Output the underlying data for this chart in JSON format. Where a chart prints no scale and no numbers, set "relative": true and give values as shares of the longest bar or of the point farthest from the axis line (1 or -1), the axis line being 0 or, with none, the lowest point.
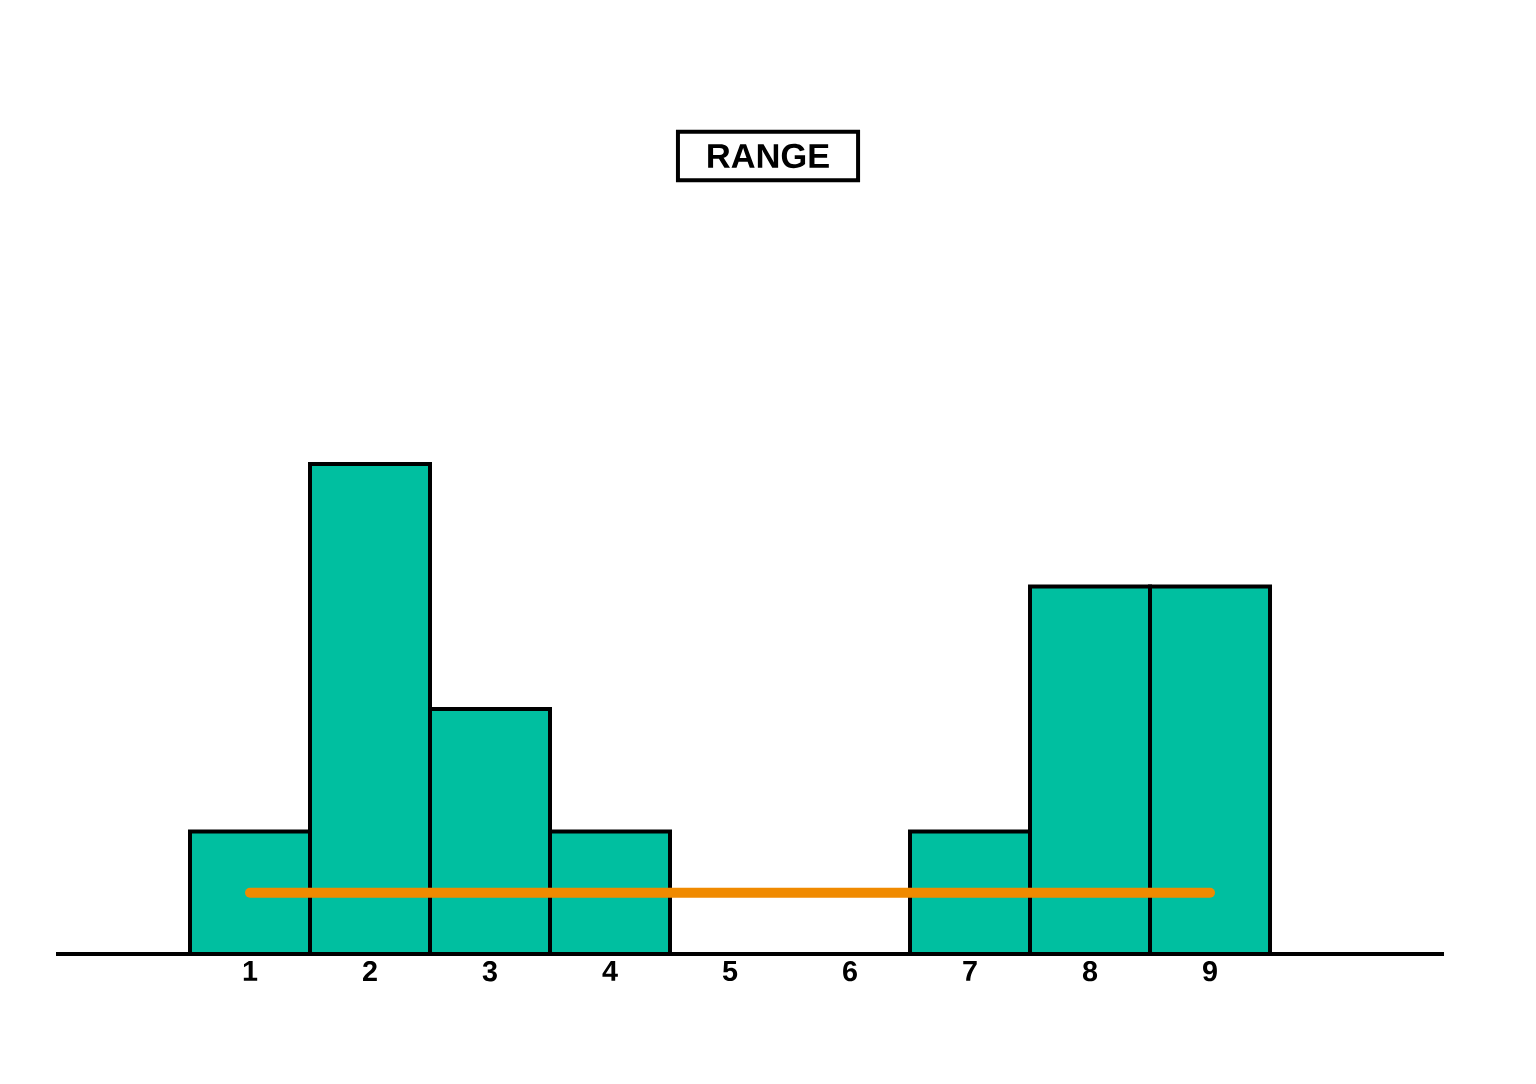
{
  "chart_data": {
    "type": "bar",
    "title": "RANGE",
    "categories": [
      "1",
      "2",
      "3",
      "4",
      "5",
      "6",
      "7",
      "8",
      "9"
    ],
    "relative": true,
    "series": [
      {
        "color": "#00bfa0",
        "values": [
          0.25,
          1,
          0.5,
          0.25,
          0,
          0,
          0.25,
          0.75,
          0.75
        ]
      },
      {
        "type": "line",
        "color": "#f08a00",
        "values": [
          0.125,
          0.125,
          0.125,
          0.125,
          0.125,
          0.125,
          0.125,
          0.125,
          0.125
        ]
      }
    ]
  }
}
